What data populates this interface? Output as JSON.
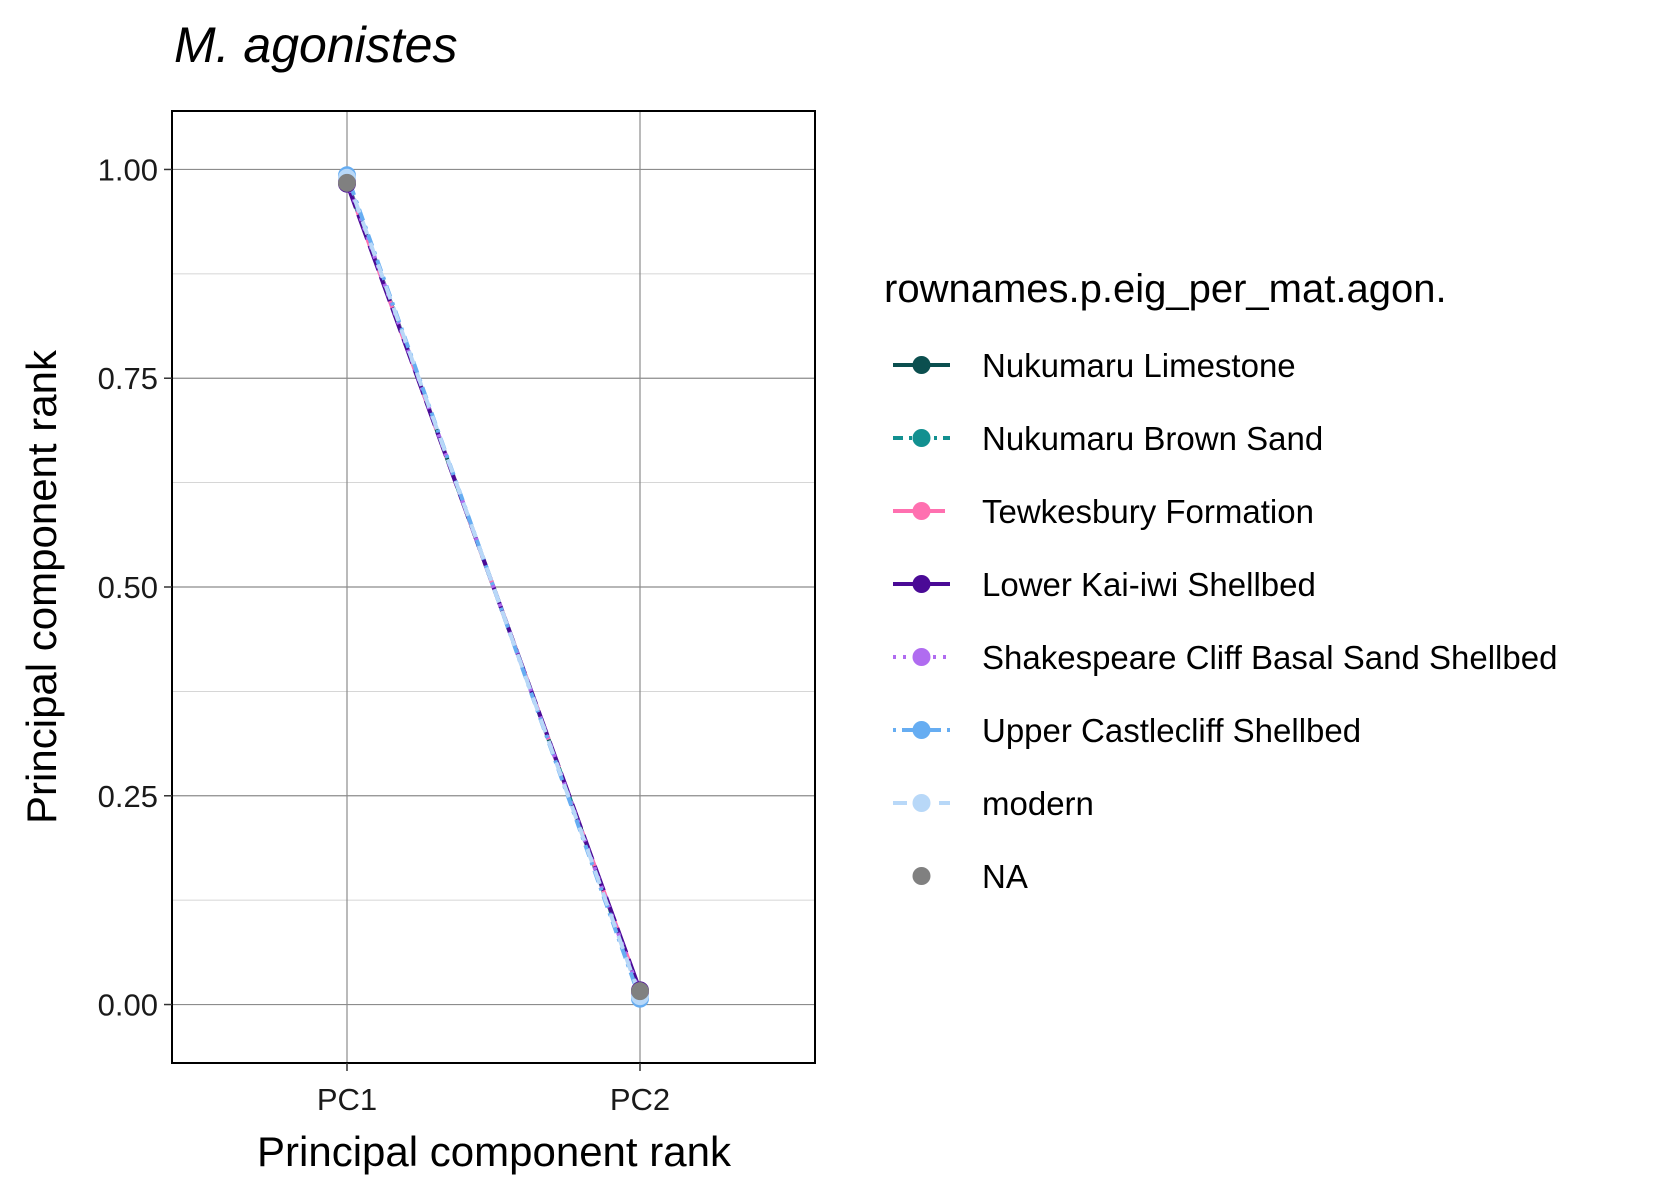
{
  "chart_data": {
    "type": "line",
    "title": "M. agonistes",
    "xlabel": "Principal component rank",
    "ylabel": "Principal component rank",
    "categories": [
      "PC1",
      "PC2"
    ],
    "ylim": [
      -0.07,
      1.07
    ],
    "yticks": [
      0.0,
      0.25,
      0.5,
      0.75,
      1.0
    ],
    "ytick_labels": [
      "0.00",
      "0.25",
      "0.50",
      "0.75",
      "1.00"
    ],
    "grid": true,
    "legend": {
      "title": "rownames.p.eig_per_mat.agon.",
      "position": "right"
    },
    "series": [
      {
        "name": "Nukumaru Limestone",
        "values": [
          0.985,
          0.015
        ],
        "color": "#0b4f4f",
        "dash": "solid"
      },
      {
        "name": "Nukumaru Brown Sand",
        "values": [
          0.986,
          0.014
        ],
        "color": "#129090",
        "dash": "dashdot"
      },
      {
        "name": "Tewkesbury Formation",
        "values": [
          0.984,
          0.016
        ],
        "color": "#ff70b0",
        "dash": "longdash"
      },
      {
        "name": "Lower Kai-iwi Shellbed",
        "values": [
          0.983,
          0.017
        ],
        "color": "#4a0a96",
        "dash": "longdash2"
      },
      {
        "name": "Shakespeare Cliff Basal Sand Shellbed",
        "values": [
          0.987,
          0.013
        ],
        "color": "#b06cf0",
        "dash": "dotted"
      },
      {
        "name": "Upper Castlecliff Shellbed",
        "values": [
          0.993,
          0.007
        ],
        "color": "#66adf2",
        "dash": "dotdash"
      },
      {
        "name": "modern",
        "values": [
          0.99,
          0.01
        ],
        "color": "#b8d8f8",
        "dash": "dashed"
      },
      {
        "name": "NA",
        "values": [
          0.984,
          0.016
        ],
        "color": "#808080",
        "dash": "none"
      }
    ]
  }
}
